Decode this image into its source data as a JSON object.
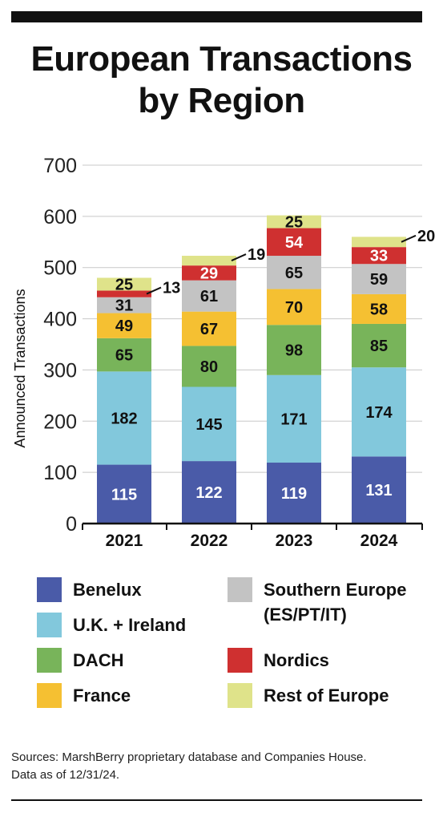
{
  "title_line1": "European Transactions",
  "title_line2": "by Region",
  "chart_data": {
    "type": "bar",
    "stacked": true,
    "categories": [
      "2021",
      "2022",
      "2023",
      "2024"
    ],
    "ylabel": "Announced Transactions",
    "ylim": [
      0,
      700
    ],
    "yticks": [
      0,
      100,
      200,
      300,
      400,
      500,
      600,
      700
    ],
    "grid": true,
    "series": [
      {
        "name": "Benelux",
        "color": "#4a5ba8",
        "label_color": "#ffffff",
        "values": [
          115,
          122,
          119,
          131
        ]
      },
      {
        "name": "U.K. + Ireland",
        "color": "#82c8dc",
        "label_color": "#111111",
        "values": [
          182,
          145,
          171,
          174
        ]
      },
      {
        "name": "DACH",
        "color": "#78b45a",
        "label_color": "#111111",
        "values": [
          65,
          80,
          98,
          85
        ]
      },
      {
        "name": "France",
        "color": "#f5c032",
        "label_color": "#111111",
        "values": [
          49,
          67,
          70,
          58
        ]
      },
      {
        "name": "Southern Europe (ES/PT/IT)",
        "color": "#c3c3c3",
        "label_color": "#111111",
        "values": [
          31,
          61,
          65,
          59
        ]
      },
      {
        "name": "Nordics",
        "color": "#cf3030",
        "label_color": "#ffffff",
        "values": [
          13,
          29,
          54,
          33
        ]
      },
      {
        "name": "Rest of Europe",
        "color": "#dfe38a",
        "label_color": "#111111",
        "values": [
          25,
          19,
          25,
          20
        ]
      }
    ]
  },
  "legend": {
    "benelux": "Benelux",
    "uk": "U.K. + Ireland",
    "dach": "DACH",
    "france": "France",
    "southern_line1": "Southern Europe",
    "southern_line2": "(ES/PT/IT)",
    "nordics": "Nordics",
    "rest": "Rest of Europe"
  },
  "sources_line1": "Sources: MarshBerry proprietary database and Companies House.",
  "sources_line2": "Data as of 12/31/24."
}
